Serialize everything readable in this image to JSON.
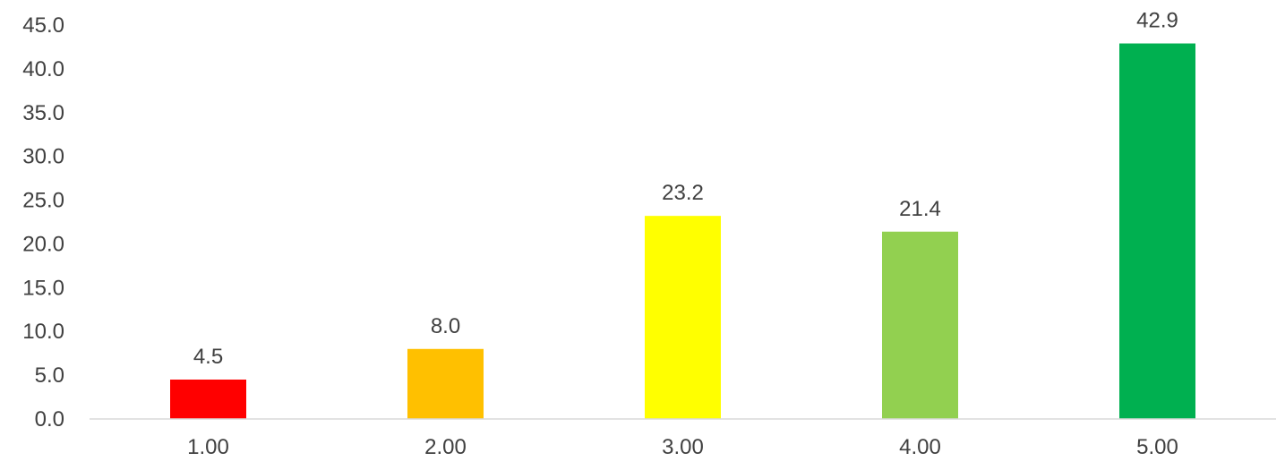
{
  "chart_data": {
    "type": "bar",
    "categories": [
      "1.00",
      "2.00",
      "3.00",
      "4.00",
      "5.00"
    ],
    "values": [
      4.5,
      8.0,
      23.2,
      21.4,
      42.9
    ],
    "data_labels": [
      "4.5",
      "8.0",
      "23.2",
      "21.4",
      "42.9"
    ],
    "colors": [
      "#ff0000",
      "#ffc000",
      "#ffff00",
      "#92d050",
      "#00b050"
    ],
    "ylim": [
      0,
      45
    ],
    "y_ticks": [
      0,
      5,
      10,
      15,
      20,
      25,
      30,
      35,
      40,
      45
    ],
    "y_tick_labels": [
      "0.0",
      "5.0",
      "10.0",
      "15.0",
      "20.0",
      "25.0",
      "30.0",
      "35.0",
      "40.0",
      "45.0"
    ],
    "title": "",
    "xlabel": "",
    "ylabel": "",
    "grid": false,
    "legend": "none"
  }
}
